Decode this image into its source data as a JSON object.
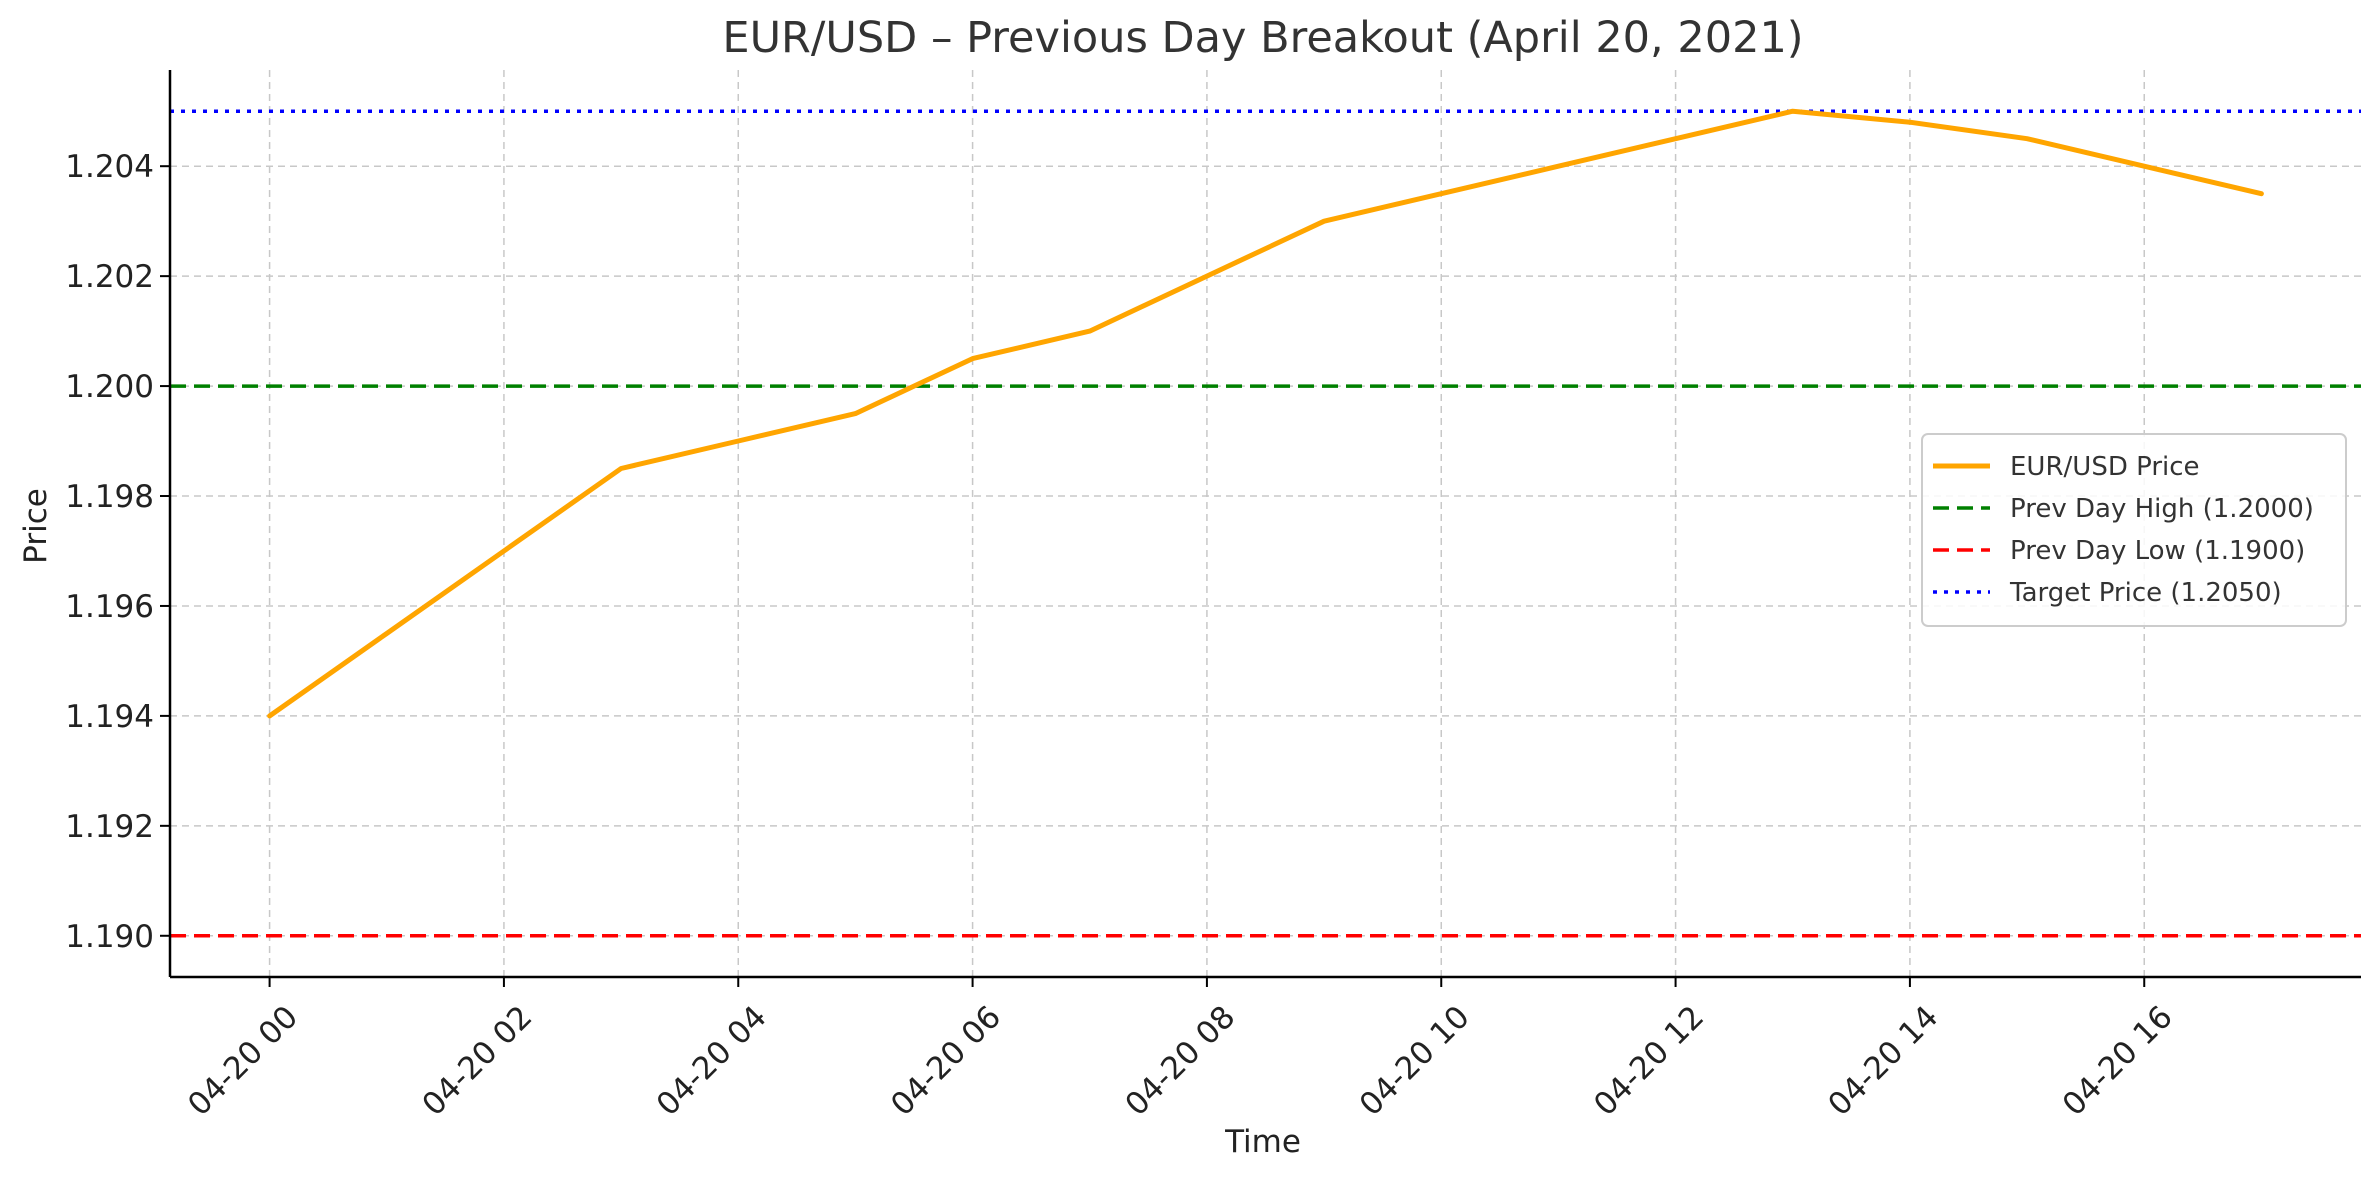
{
  "chart_data": {
    "type": "line",
    "title": "EUR/USD – Previous Day Breakout (April 20, 2021)",
    "xlabel": "Time",
    "ylabel": "Price",
    "x_tick_labels": [
      "04-20 00",
      "04-20 02",
      "04-20 04",
      "04-20 06",
      "04-20 08",
      "04-20 10",
      "04-20 12",
      "04-20 14",
      "04-20 16"
    ],
    "x_tick_hours": [
      0,
      2,
      4,
      6,
      8,
      10,
      12,
      14,
      16
    ],
    "y_ticks": [
      1.19,
      1.192,
      1.194,
      1.196,
      1.198,
      1.2,
      1.202,
      1.204
    ],
    "y_tick_labels": [
      "1.190",
      "1.192",
      "1.194",
      "1.196",
      "1.198",
      "1.200",
      "1.202",
      "1.204"
    ],
    "xlim": [
      -0.85,
      17.85
    ],
    "ylim": [
      1.18925,
      1.20575
    ],
    "grid": true,
    "legend_position": "center-right",
    "series": [
      {
        "name": "EUR/USD Price",
        "style": "solid",
        "color": "#FFA500",
        "x": [
          0,
          1,
          2,
          3,
          4,
          5,
          6,
          7,
          8,
          9,
          10,
          11,
          12,
          13,
          14,
          15,
          16,
          17
        ],
        "y": [
          1.194,
          1.1955,
          1.197,
          1.1985,
          1.199,
          1.1995,
          1.2005,
          1.201,
          1.202,
          1.203,
          1.2035,
          1.204,
          1.2045,
          1.205,
          1.2048,
          1.2045,
          1.204,
          1.2035
        ]
      }
    ],
    "reference_lines": [
      {
        "name": "Prev Day High (1.2000)",
        "value": 1.2,
        "color": "#008000",
        "style": "dashed"
      },
      {
        "name": "Prev Day Low (1.1900)",
        "value": 1.19,
        "color": "#FF0000",
        "style": "dashed"
      },
      {
        "name": "Target Price (1.2050)",
        "value": 1.205,
        "color": "#0000FF",
        "style": "dotted"
      }
    ]
  }
}
